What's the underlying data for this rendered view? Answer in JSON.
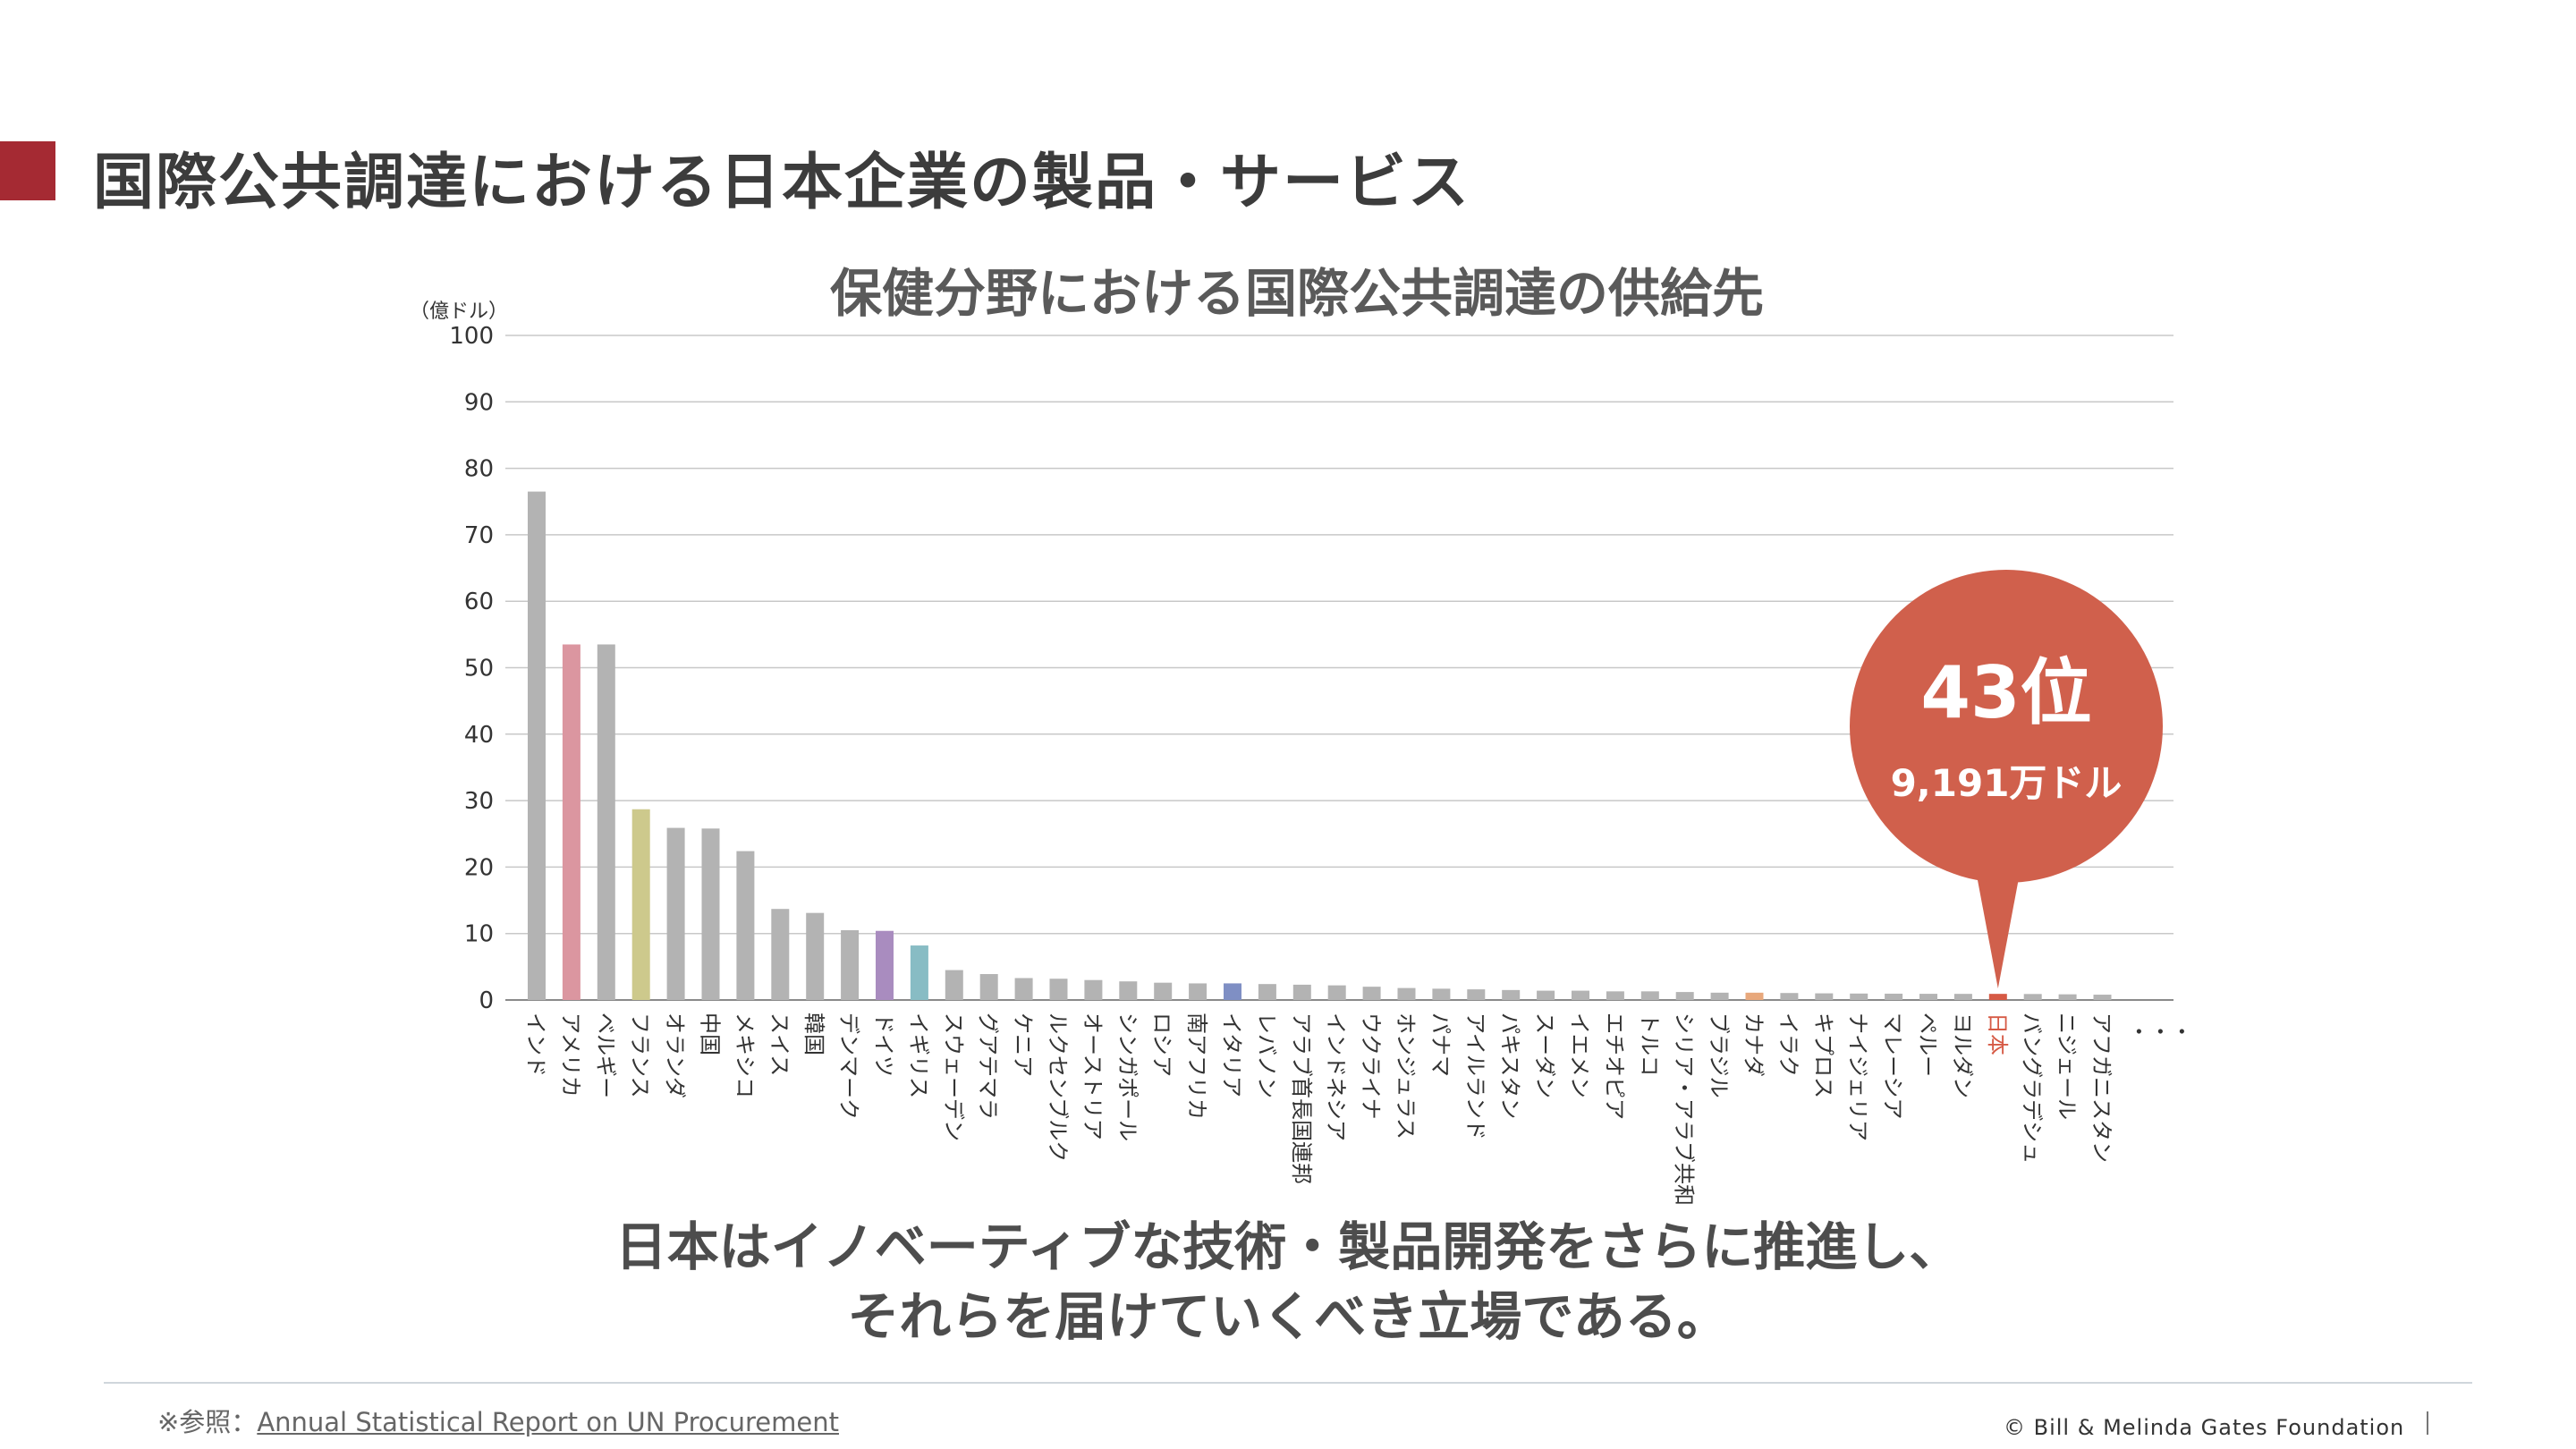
{
  "slide": {
    "title": "国際公共調達における日本企業の製品・サービス",
    "conclusion_line1": "日本はイノベーティブな技術・製品開発をさらに推進し、",
    "conclusion_line2": "それらを届けていくべき立場である。",
    "source_prefix": "※参照：",
    "source_link": "Annual Statistical Report on UN Procurement",
    "copyright": "© Bill & Melinda Gates Foundation"
  },
  "chart_data": {
    "type": "bar",
    "title": "保健分野における国際公共調達の供給先",
    "ylabel": "（億ドル）",
    "xlabel": "",
    "ylim": [
      0,
      100
    ],
    "yticks": [
      0,
      10,
      20,
      30,
      40,
      50,
      60,
      70,
      80,
      90,
      100
    ],
    "grid": true,
    "categories": [
      "インド",
      "アメリカ",
      "ベルギー",
      "フランス",
      "オランダ",
      "中国",
      "メキシコ",
      "スイス",
      "韓国",
      "デンマーク",
      "ドイツ",
      "イギリス",
      "スウェーデン",
      "グアテマラ",
      "ケニア",
      "ルクセンブルク",
      "オーストリア",
      "シンガポール",
      "ロシア",
      "南アフリカ",
      "イタリア",
      "レバノン",
      "アラブ首長国連邦",
      "インドネシア",
      "ウクライナ",
      "ホンジュラス",
      "パナマ",
      "アイルランド",
      "パキスタン",
      "スーダン",
      "イエメン",
      "エチオピア",
      "トルコ",
      "シリア・アラブ共和国",
      "ブラジル",
      "カナダ",
      "イラク",
      "キプロス",
      "ナイジェリア",
      "マレーシア",
      "ペルー",
      "ヨルダン",
      "日本",
      "バングラデシュ",
      "ニジェール",
      "アフガニスタン"
    ],
    "values": [
      76.5,
      53.5,
      53.5,
      28.7,
      25.9,
      25.8,
      22.4,
      13.7,
      13.1,
      10.5,
      10.4,
      8.2,
      4.5,
      3.9,
      3.3,
      3.2,
      3.0,
      2.8,
      2.6,
      2.5,
      2.5,
      2.4,
      2.3,
      2.2,
      2.0,
      1.8,
      1.7,
      1.6,
      1.5,
      1.4,
      1.4,
      1.3,
      1.3,
      1.2,
      1.1,
      1.1,
      1.05,
      1.0,
      0.97,
      0.95,
      0.93,
      0.92,
      0.92,
      0.9,
      0.85,
      0.8
    ],
    "colors": [
      "#b3b3b3",
      "#db96a0",
      "#b3b3b3",
      "#cdc98c",
      "#b3b3b3",
      "#b3b3b3",
      "#b3b3b3",
      "#b3b3b3",
      "#b3b3b3",
      "#b3b3b3",
      "#a98cbf",
      "#88bcc4",
      "#b3b3b3",
      "#b3b3b3",
      "#b3b3b3",
      "#b3b3b3",
      "#b3b3b3",
      "#b3b3b3",
      "#b3b3b3",
      "#b3b3b3",
      "#7f8fc4",
      "#b3b3b3",
      "#b3b3b3",
      "#b3b3b3",
      "#b3b3b3",
      "#b3b3b3",
      "#b3b3b3",
      "#b3b3b3",
      "#b3b3b3",
      "#b3b3b3",
      "#b3b3b3",
      "#b3b3b3",
      "#b3b3b3",
      "#b3b3b3",
      "#b3b3b3",
      "#e8a87c",
      "#b3b3b3",
      "#b3b3b3",
      "#b3b3b3",
      "#b3b3b3",
      "#b3b3b3",
      "#b3b3b3",
      "#d65a45",
      "#b3b3b3",
      "#b3b3b3",
      "#b3b3b3"
    ],
    "more_indicator": "・・・",
    "highlight": {
      "category": "日本",
      "rank_text": "43位",
      "amount_text": "9,191万ドル",
      "bubble_color": "#d0604c"
    }
  }
}
